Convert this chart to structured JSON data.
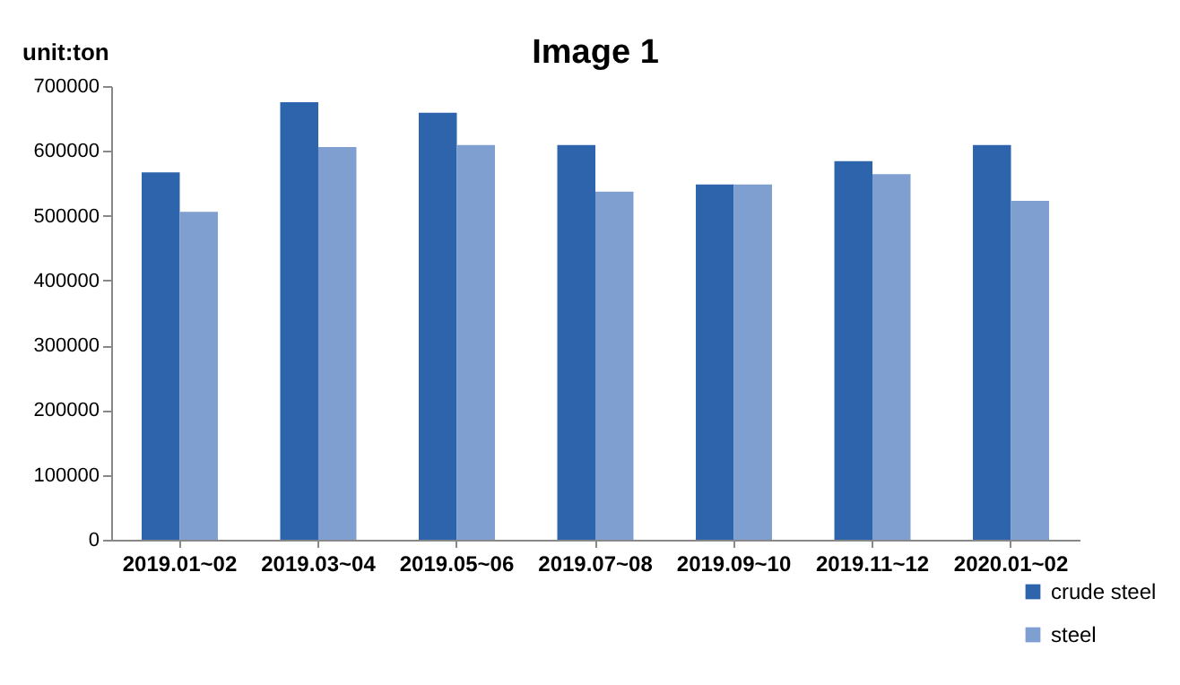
{
  "chart_data": {
    "type": "bar",
    "title": "Image 1",
    "ylabel": "unit:ton",
    "categories": [
      "2019.01~02",
      "2019.03~04",
      "2019.05~06",
      "2019.07~08",
      "2019.09~10",
      "2019.11~12",
      "2020.01~02"
    ],
    "series": [
      {
        "name": "crude steel",
        "color": "#2e64ac",
        "values": [
          567000,
          675000,
          659000,
          609000,
          548000,
          584000,
          609000
        ]
      },
      {
        "name": "steel",
        "color": "#7f9fd0",
        "values": [
          506000,
          606000,
          609000,
          537000,
          548000,
          564000,
          523000
        ]
      }
    ],
    "ylim": [
      0,
      700000
    ],
    "yticks": [
      0,
      100000,
      200000,
      300000,
      400000,
      500000,
      600000,
      700000
    ],
    "grid": false,
    "legend": "bottom right"
  }
}
